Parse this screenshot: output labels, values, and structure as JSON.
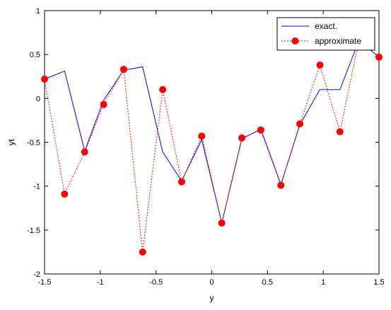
{
  "chart_data": {
    "type": "line",
    "xlabel": "y",
    "ylabel": "yt",
    "xlim": [
      -1.5,
      1.5
    ],
    "ylim": [
      -2,
      1
    ],
    "xticks": [
      "-1.5",
      "-1",
      "-0.5",
      "0",
      "0.5",
      "1",
      "1.5"
    ],
    "yticks": [
      "-2",
      "-1.5",
      "-1",
      "-0.5",
      "0",
      "0.5",
      "1"
    ],
    "xtick_values": [
      -1.5,
      -1,
      -0.5,
      0,
      0.5,
      1,
      1.5
    ],
    "ytick_values": [
      -2,
      -1.5,
      -1,
      -0.5,
      0,
      0.5,
      1
    ],
    "grid": false,
    "legend_position": "top-right",
    "x": [
      -1.5,
      -1.32,
      -1.14,
      -0.97,
      -0.79,
      -0.62,
      -0.44,
      -0.27,
      -0.09,
      0.09,
      0.27,
      0.44,
      0.62,
      0.79,
      0.97,
      1.15,
      1.32,
      1.5
    ],
    "series": [
      {
        "name": "exact.",
        "color": "#0000ff",
        "style": "solid",
        "values": [
          0.22,
          0.31,
          -0.6,
          -0.02,
          0.32,
          0.36,
          -0.61,
          -0.94,
          -0.47,
          -1.42,
          -0.46,
          -0.35,
          -0.98,
          -0.3,
          0.1,
          0.1,
          0.66,
          0.47
        ]
      },
      {
        "name": "approximate",
        "color": "#ff0000",
        "style": "dotted",
        "marker": "circle",
        "values": [
          0.22,
          -1.09,
          -0.61,
          -0.07,
          0.33,
          -1.75,
          0.1,
          -0.95,
          -0.43,
          -1.42,
          -0.45,
          -0.36,
          -0.99,
          -0.29,
          0.38,
          -0.38,
          0.66,
          0.47
        ]
      }
    ]
  }
}
